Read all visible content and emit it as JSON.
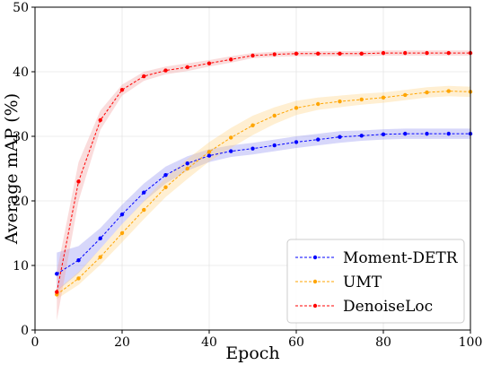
{
  "chart_data": {
    "type": "line",
    "xlabel": "Epoch",
    "ylabel": "Average mAP (%)",
    "xlim": [
      0,
      100
    ],
    "ylim": [
      0,
      50
    ],
    "xticks": [
      0,
      20,
      40,
      60,
      80,
      100
    ],
    "yticks": [
      0,
      10,
      20,
      30,
      40,
      50
    ],
    "grid": true,
    "legend_position": "bottom-right",
    "series": [
      {
        "name": "Moment-DETR",
        "color": "#0000ff",
        "band_color": "#8c8cf0",
        "x": [
          5,
          10,
          15,
          20,
          25,
          30,
          35,
          40,
          45,
          50,
          55,
          60,
          65,
          70,
          75,
          80,
          85,
          90,
          95,
          100
        ],
        "y": [
          8.7,
          10.8,
          14.2,
          17.9,
          21.3,
          24.0,
          25.8,
          27.0,
          27.7,
          28.1,
          28.6,
          29.1,
          29.5,
          29.9,
          30.1,
          30.3,
          30.4,
          30.4,
          30.4,
          30.4
        ],
        "lower": [
          6.0,
          8.8,
          12.6,
          16.4,
          19.9,
          22.7,
          24.7,
          26.0,
          26.8,
          27.2,
          27.7,
          28.2,
          28.6,
          29.0,
          29.3,
          29.5,
          29.6,
          29.6,
          29.6,
          29.6
        ],
        "upper": [
          12.0,
          13.0,
          15.8,
          19.4,
          22.7,
          25.3,
          26.9,
          28.0,
          28.6,
          29.0,
          29.5,
          30.0,
          30.4,
          30.8,
          30.9,
          31.1,
          31.2,
          31.2,
          31.2,
          31.2
        ]
      },
      {
        "name": "UMT",
        "color": "#ffa500",
        "band_color": "#ffd27f",
        "x": [
          5,
          10,
          15,
          20,
          25,
          30,
          35,
          40,
          45,
          50,
          55,
          60,
          65,
          70,
          75,
          80,
          85,
          90,
          95,
          100
        ],
        "y": [
          5.5,
          8.0,
          11.3,
          15.0,
          18.6,
          22.1,
          25.0,
          27.6,
          29.8,
          31.7,
          33.2,
          34.4,
          35.0,
          35.4,
          35.7,
          36.0,
          36.4,
          36.8,
          37.0,
          36.9
        ],
        "lower": [
          4.8,
          7.0,
          10.1,
          13.6,
          17.2,
          20.6,
          23.4,
          26.1,
          28.2,
          30.2,
          31.9,
          33.3,
          34.1,
          34.5,
          34.9,
          35.2,
          35.6,
          36.0,
          36.2,
          36.1
        ],
        "upper": [
          6.2,
          9.0,
          12.6,
          16.4,
          20.0,
          23.6,
          26.5,
          29.1,
          31.3,
          33.2,
          34.5,
          35.5,
          36.0,
          36.3,
          36.6,
          36.8,
          37.2,
          37.6,
          37.8,
          37.7
        ]
      },
      {
        "name": "DenoiseLoc",
        "color": "#ff0000",
        "band_color": "#f29b9b",
        "x": [
          5,
          10,
          15,
          20,
          25,
          30,
          35,
          40,
          45,
          50,
          55,
          60,
          65,
          70,
          75,
          80,
          85,
          90,
          95,
          100
        ],
        "y": [
          5.9,
          23.0,
          32.5,
          37.2,
          39.3,
          40.2,
          40.7,
          41.3,
          41.9,
          42.5,
          42.7,
          42.8,
          42.8,
          42.8,
          42.8,
          42.9,
          42.9,
          42.9,
          42.9,
          42.9
        ],
        "lower": [
          1.5,
          20.0,
          31.0,
          36.3,
          38.6,
          39.6,
          40.1,
          40.8,
          41.4,
          42.1,
          42.3,
          42.4,
          42.4,
          42.4,
          42.4,
          42.5,
          42.5,
          42.5,
          42.5,
          42.5
        ],
        "upper": [
          9.0,
          26.0,
          34.0,
          38.0,
          40.0,
          40.8,
          41.3,
          41.8,
          42.4,
          42.9,
          43.1,
          43.2,
          43.2,
          43.2,
          43.2,
          43.3,
          43.3,
          43.3,
          43.3,
          43.3
        ]
      }
    ]
  }
}
